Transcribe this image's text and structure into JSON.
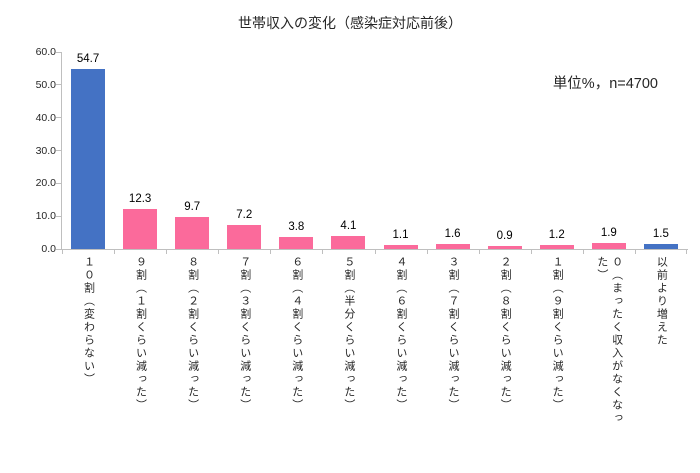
{
  "chart_data": {
    "type": "bar",
    "title": "世帯収入の変化（感染症対応前後）",
    "annotation": "単位%，n=4700",
    "categories": [
      "１０割（変わらない）",
      "９割（１割くらい減った）",
      "８割（２割くらい減った）",
      "７割（３割くらい減った）",
      "６割（４割くらい減った）",
      "５割（半分くらい減った）",
      "４割（６割くらい減った）",
      "３割（７割くらい減った）",
      "２割（８割くらい減った）",
      "１割（９割くらい減った）",
      "０（まったく収入がなくなった）",
      "以前より増えた"
    ],
    "values": [
      54.7,
      12.3,
      9.7,
      7.2,
      3.8,
      4.1,
      1.1,
      1.6,
      0.9,
      1.2,
      1.9,
      1.5
    ],
    "bar_colors": [
      "#4472C4",
      "#FB6A9B",
      "#FB6A9B",
      "#FB6A9B",
      "#FB6A9B",
      "#FB6A9B",
      "#FB6A9B",
      "#FB6A9B",
      "#FB6A9B",
      "#FB6A9B",
      "#FB6A9B",
      "#4472C4"
    ],
    "xlabel": "",
    "ylabel": "",
    "ylim": [
      0,
      60
    ],
    "ytick_step": 10,
    "ytick_labels": [
      "0.0",
      "10.0",
      "20.0",
      "30.0",
      "40.0",
      "50.0",
      "60.0"
    ],
    "grid": false,
    "legend": "none",
    "colors": {
      "primary_blue": "#4472C4",
      "primary_pink": "#FB6A9B",
      "axis_line": "#BFBFBF",
      "text": "#262626"
    }
  }
}
